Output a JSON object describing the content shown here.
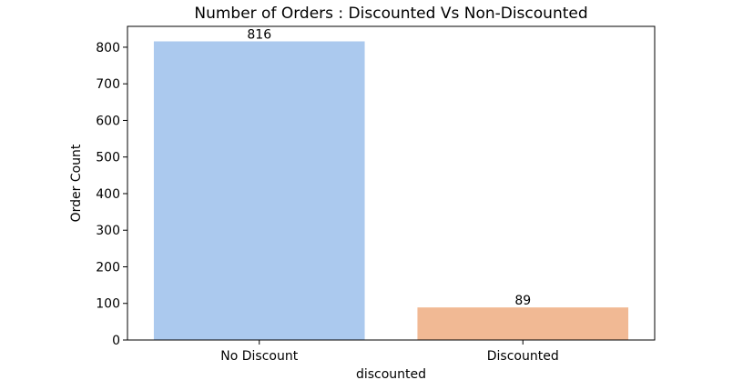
{
  "chart_data": {
    "type": "bar",
    "title": "Number of Orders : Discounted Vs Non-Discounted",
    "xlabel": "discounted",
    "ylabel": "Order Count",
    "categories": [
      "No Discount",
      "Discounted"
    ],
    "values": [
      816,
      89
    ],
    "data_labels": [
      "816",
      "89"
    ],
    "ylim": [
      0,
      857
    ],
    "yticks": [
      0,
      100,
      200,
      300,
      400,
      500,
      600,
      700,
      800
    ],
    "ytick_labels": [
      "0",
      "100",
      "200",
      "300",
      "400",
      "500",
      "600",
      "700",
      "800"
    ],
    "colors": [
      "#abc9ee",
      "#f1b994"
    ],
    "grid": false,
    "legend": "none"
  }
}
